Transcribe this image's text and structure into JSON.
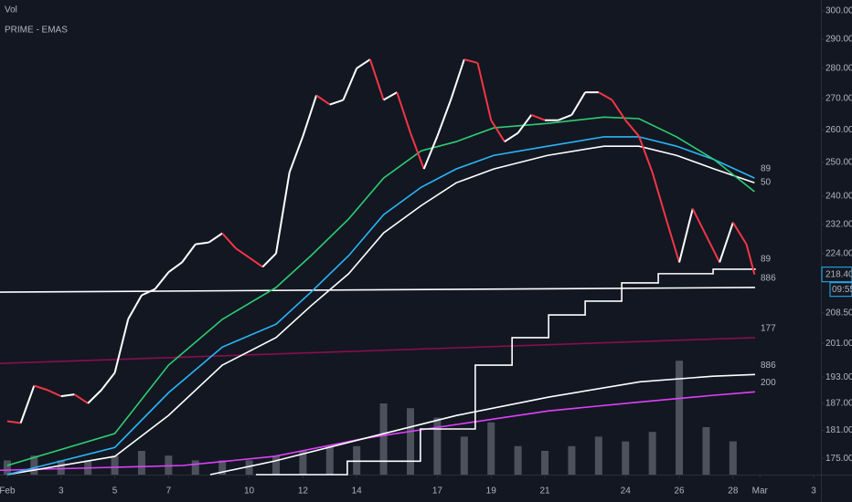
{
  "chart_data": {
    "type": "line",
    "title": "PRIME - EMAS",
    "volume_label": "Vol",
    "price_tag": "218.40",
    "countdown": "09:55",
    "log_scale": true,
    "grid": false,
    "xlim": [
      0.73,
      31.27
    ],
    "ylim": [
      171.6,
      304
    ],
    "y2lim": [
      0,
      100
    ],
    "xticks": [
      {
        "value": 1,
        "label": "Feb"
      },
      3,
      5,
      7,
      10,
      12,
      14,
      17,
      19,
      21,
      24,
      26,
      28,
      {
        "value": 29,
        "label": "Mar"
      },
      {
        "value": 31,
        "label": "3"
      }
    ],
    "yticks": [
      {
        "value": 300,
        "label": "300.00"
      },
      {
        "value": 290,
        "label": "290.00"
      },
      {
        "value": 280,
        "label": "280.00"
      },
      {
        "value": 270,
        "label": "270.00"
      },
      {
        "value": 260,
        "label": "260.00"
      },
      {
        "value": 250,
        "label": "250.00"
      },
      {
        "value": 240,
        "label": "240.00"
      },
      {
        "value": 232,
        "label": "232.00"
      },
      {
        "value": 224,
        "label": "224.00"
      },
      {
        "value": 208.5,
        "label": "208.50"
      },
      {
        "value": 201,
        "label": "201.00"
      },
      {
        "value": 193,
        "label": "193.00"
      },
      {
        "value": 187,
        "label": "187.00"
      },
      {
        "value": 181,
        "label": "181.00"
      },
      {
        "value": 175,
        "label": "175.00"
      }
    ],
    "series": [
      {
        "axis": "y2",
        "bar": true,
        "color": "#5d606b",
        "x": [
          1,
          2,
          3,
          4,
          5,
          6,
          7,
          8,
          9,
          10,
          11,
          12,
          13,
          14,
          15,
          16,
          17,
          18,
          19,
          20,
          21,
          22,
          23,
          24,
          25,
          26,
          27,
          28
        ],
        "values": [
          3,
          4,
          3,
          3,
          4,
          5,
          4,
          3,
          3,
          3,
          4,
          5,
          6,
          6,
          15,
          14,
          12,
          8,
          11,
          6,
          5,
          6,
          8,
          7,
          9,
          24,
          10,
          7
        ]
      },
      {
        "name": "886",
        "color": "#ffffff",
        "x": [
          0.73,
          28.82
        ],
        "values": [
          213.8,
          215.0
        ]
      },
      {
        "name": "177",
        "color": "#880e4f",
        "x": [
          0.73,
          28.82
        ],
        "values": [
          196.2,
          202.4
        ]
      },
      {
        "name": "200",
        "color": "#e040fb",
        "x": [
          0.73,
          7.53,
          10.93,
          14.33,
          17.73,
          21.14,
          24.54,
          27.26,
          28.82
        ],
        "values": [
          172.5,
          173.5,
          175.4,
          179.3,
          182.3,
          185.3,
          187.3,
          188.8,
          189.6
        ]
      },
      {
        "name": "886",
        "color": "#ffffff",
        "x": [
          8.55,
          10.93,
          14.33,
          17.73,
          21.14,
          24.54,
          27.26,
          28.82
        ],
        "values": [
          171.6,
          174.4,
          179.3,
          184.3,
          188.4,
          191.9,
          193.2,
          193.6
        ]
      },
      {
        "name": "89",
        "color": "#ffffff",
        "step": true,
        "x": [
          10.25,
          13.65,
          16.37,
          18.41,
          19.78,
          21.14,
          22.5,
          23.86,
          25.22,
          27.26,
          28.82
        ],
        "values": [
          171.6,
          174.4,
          181.3,
          195.8,
          202.4,
          208.0,
          211.5,
          216.2,
          218.6,
          219.8,
          220.0
        ]
      },
      {
        "color": "#ffffff",
        "x": [
          1,
          5,
          7,
          9,
          11,
          12.3,
          13.7,
          15,
          16.4,
          17.7,
          19.1,
          21.1,
          23.2,
          24.5,
          25.9,
          27.3,
          28.8
        ],
        "values": [
          171.6,
          175.4,
          184.3,
          195.8,
          202.4,
          210.3,
          218.6,
          229.6,
          237.3,
          243.9,
          248.0,
          252.1,
          254.9,
          254.9,
          252.1,
          248.0,
          243.9
        ]
      },
      {
        "name": "89",
        "color": "#29b6f6",
        "x": [
          1,
          5,
          7,
          9,
          11,
          12.3,
          13.7,
          15,
          16.4,
          17.7,
          19.1,
          21.1,
          23.2,
          24.5,
          25.9,
          27.3,
          28.8
        ],
        "values": [
          171.6,
          177.3,
          189.4,
          200.1,
          205.7,
          213.8,
          223.4,
          234.7,
          242.6,
          248.0,
          252.1,
          254.9,
          257.8,
          257.8,
          254.9,
          250.8,
          245.3
        ]
      },
      {
        "name": "50",
        "color": "#2ecc71",
        "x": [
          1,
          5,
          7,
          9,
          11,
          12.3,
          13.7,
          15,
          16.4,
          17.7,
          19.1,
          21.1,
          23.2,
          24.5,
          25.9,
          27.3,
          28.8
        ],
        "values": [
          173.5,
          180.3,
          195.8,
          206.9,
          215.0,
          223.4,
          233.5,
          245.3,
          253.5,
          256.3,
          260.6,
          262.0,
          264.0,
          263.5,
          257.8,
          250.8,
          241.3
        ]
      },
      {
        "updown": true,
        "up_color": "#ffffff",
        "down_color": "#f23645",
        "x": [
          1,
          1.5,
          2,
          2.5,
          3,
          3.5,
          4,
          4.5,
          5,
          5.5,
          6,
          6.5,
          7,
          7.5,
          8,
          8.5,
          9,
          9.5,
          10,
          10.5,
          11,
          11.5,
          12,
          12.5,
          13,
          13.5,
          14,
          14.5,
          15,
          15.5,
          16,
          16.5,
          17,
          17.5,
          18,
          18.5,
          19,
          19.5,
          20,
          20.5,
          21,
          21.5,
          22,
          22.5,
          23,
          23.5,
          24,
          24.5,
          25,
          25.5,
          26,
          26.5,
          27,
          27.5,
          28,
          28.5,
          28.8
        ],
        "values": [
          183,
          182.6,
          191,
          190,
          188.6,
          189,
          187,
          190,
          194,
          207,
          213,
          214.6,
          219,
          221.6,
          226.5,
          227,
          229.5,
          225.4,
          222.9,
          220.4,
          224,
          247,
          258,
          271,
          268,
          269.5,
          280,
          283,
          269.5,
          272,
          259,
          248,
          258,
          269.5,
          283,
          281.8,
          263,
          256.3,
          259,
          264.7,
          263,
          263,
          264.7,
          272,
          272,
          269.5,
          263,
          258,
          247,
          233.8,
          221.6,
          236.4,
          228.9,
          221.6,
          232.5,
          226.5,
          218.4
        ]
      }
    ]
  }
}
